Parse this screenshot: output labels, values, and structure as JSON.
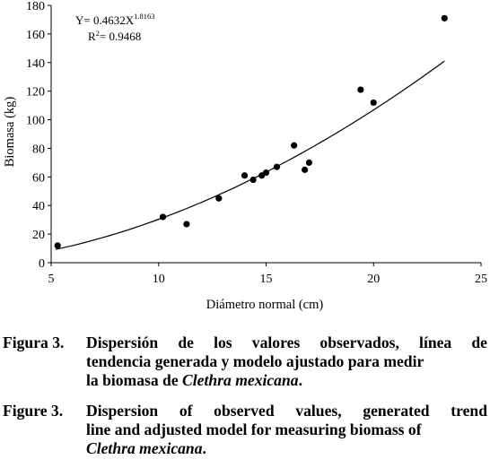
{
  "chart_data": {
    "type": "scatter",
    "xlabel": "Diámetro normal (cm)",
    "ylabel": "Biomasa (kg)",
    "xlim": [
      5,
      25
    ],
    "ylim": [
      0,
      180
    ],
    "x_ticks": [
      "5",
      "10",
      "15",
      "20",
      "25"
    ],
    "y_ticks": [
      "0",
      "20",
      "40",
      "60",
      "80",
      "100",
      "120",
      "140",
      "160",
      "180"
    ],
    "equation": "Y= 0.4632X",
    "equation_exponent": "1.8163",
    "r2_prefix": "R",
    "r2_sup": "2",
    "r2_value": "= 0.9468",
    "model": {
      "a": 0.4632,
      "b": 1.8163,
      "x_start": 5.2,
      "x_end": 23.3
    },
    "series": [
      {
        "points": [
          [
            5.3,
            12
          ],
          [
            10.2,
            32
          ],
          [
            11.3,
            27
          ],
          [
            12.8,
            45
          ],
          [
            14.0,
            61
          ],
          [
            14.4,
            58
          ],
          [
            14.8,
            61
          ],
          [
            15.0,
            63
          ],
          [
            15.5,
            67
          ],
          [
            16.3,
            82
          ],
          [
            16.8,
            65
          ],
          [
            17.0,
            70
          ],
          [
            19.4,
            121
          ],
          [
            20.0,
            112
          ],
          [
            23.3,
            171
          ]
        ]
      }
    ],
    "grid": false,
    "marker_color": "#000000"
  },
  "caption_es": {
    "lead": "Figura 3.",
    "line1": "Dispersión de los valores observados, línea de",
    "line2": "tendencia generada y modelo ajustado para medir",
    "line3_pre": "la biomasa de ",
    "line3_italic": "Clethra mexicana",
    "line3_post": "."
  },
  "caption_en": {
    "lead": "Figure 3.",
    "line1": "Dispersion of observed values, generated trend",
    "line2": "line and adjusted model for measuring biomass of",
    "line3_italic": "Clethra mexicana",
    "line3_post": "."
  }
}
